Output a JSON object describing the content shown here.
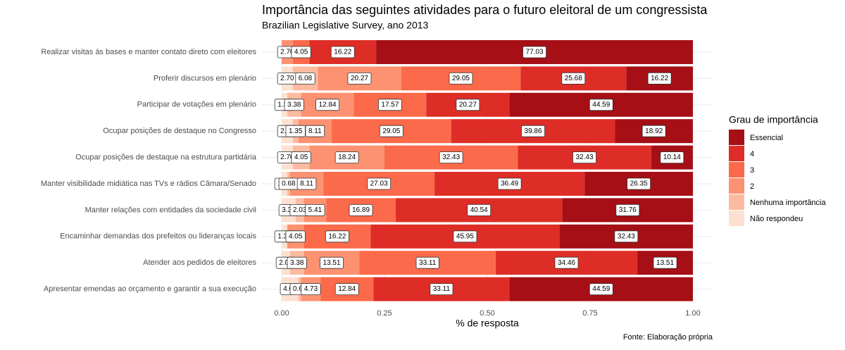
{
  "chart_data": {
    "type": "stacked-barh",
    "title": "Importância das seguintes atividades para o futuro eleitoral de um congressista",
    "subtitle": "Brazilian Legislative Survey, ano 2013",
    "x_label": "% de resposta",
    "caption": "Fonte: Elaboração própria",
    "legend_title": "Grau de importância",
    "categories": [
      "Realizar visitas às bases e manter contato direto com eleitores",
      "Proferir discursos em plenário",
      "Participar de votações em plenário",
      "Ocupar posições de destaque no Congresso",
      "Ocupar posições de destaque na estrutura partidária",
      "Manter visibilidade midiática nas TVs e rádios Câmara/Senado",
      "Manter relações com entidades da sociedade civil",
      "Encaminhar demandas dos prefeitos ou lideranças locais",
      "Atender aos pedidos de eleitores",
      "Apresentar emendas ao orçamento e garantir a sua execução"
    ],
    "series": [
      {
        "name": "Essencial",
        "color": "#a50f15",
        "values": [
          0.7703,
          0.1622,
          0.4459,
          0.1892,
          0.1014,
          0.2635,
          0.3176,
          0.3243,
          0.1351,
          0.4459
        ],
        "value_labels": [
          "77.03",
          "16.22",
          "44.59",
          "18.92",
          "10.14",
          "26.35",
          "31.76",
          "32.43",
          "13.51",
          "44.59"
        ]
      },
      {
        "name": "4",
        "color": "#de2d26",
        "values": [
          0.1622,
          0.2568,
          0.2027,
          0.3986,
          0.3243,
          0.3649,
          0.4054,
          0.4595,
          0.3446,
          0.3311
        ],
        "value_labels": [
          "16.22",
          "25.68",
          "20.27",
          "39.86",
          "32.43",
          "36.49",
          "40.54",
          "45.95",
          "34.46",
          "33.11"
        ]
      },
      {
        "name": "3",
        "color": "#fb6a4a",
        "values": [
          0.0405,
          0.2905,
          0.1757,
          0.2905,
          0.3243,
          0.2703,
          0.1689,
          0.1622,
          0.3311,
          0.1284
        ],
        "value_labels": [
          "4.05",
          "29.05",
          "17.57",
          "29.05",
          "32.43",
          "27.03",
          "16.89",
          "16.22",
          "33.11",
          "12.84"
        ]
      },
      {
        "name": "2",
        "color": "#fc9272",
        "values": [
          0.027,
          0.2027,
          0.1284,
          0.0811,
          0.1824,
          0.0811,
          0.0541,
          0.0405,
          0.1351,
          0.0473
        ],
        "value_labels": [
          "2.70",
          "20.27",
          "12.84",
          "8.11",
          "18.24",
          "8.11",
          "5.41",
          "4.05",
          "13.51",
          "4.73"
        ]
      },
      {
        "name": "Nenhuma importância",
        "color": "#fcbba1",
        "values": [
          null,
          0.0608,
          0.0338,
          0.0135,
          0.0405,
          0.0068,
          0.0203,
          null,
          0.0338,
          0.0068
        ],
        "value_labels": [
          null,
          "6.08",
          "3.38",
          "1.35",
          "4.05",
          "0.68",
          "2.03",
          null,
          "3.38",
          "0.68"
        ]
      },
      {
        "name": "Não respondeu",
        "color": "#fee0d2",
        "values": [
          null,
          0.027,
          0.0135,
          0.027,
          0.027,
          0.0135,
          0.0338,
          0.0135,
          0.0203,
          0.0405
        ],
        "value_labels": [
          null,
          "2.70",
          "1.35",
          "2.70",
          "2.70",
          "1.35",
          "3.38",
          "1.35",
          "2.03",
          "4.05"
        ]
      }
    ],
    "xlim": [
      0,
      1
    ],
    "xticks": [
      {
        "value": 0,
        "label": "0.00"
      },
      0.25,
      {
        "value": 0.5,
        "label": "0.50"
      },
      0.75,
      {
        "value": 1,
        "label": "1.00"
      }
    ],
    "grid": true
  }
}
